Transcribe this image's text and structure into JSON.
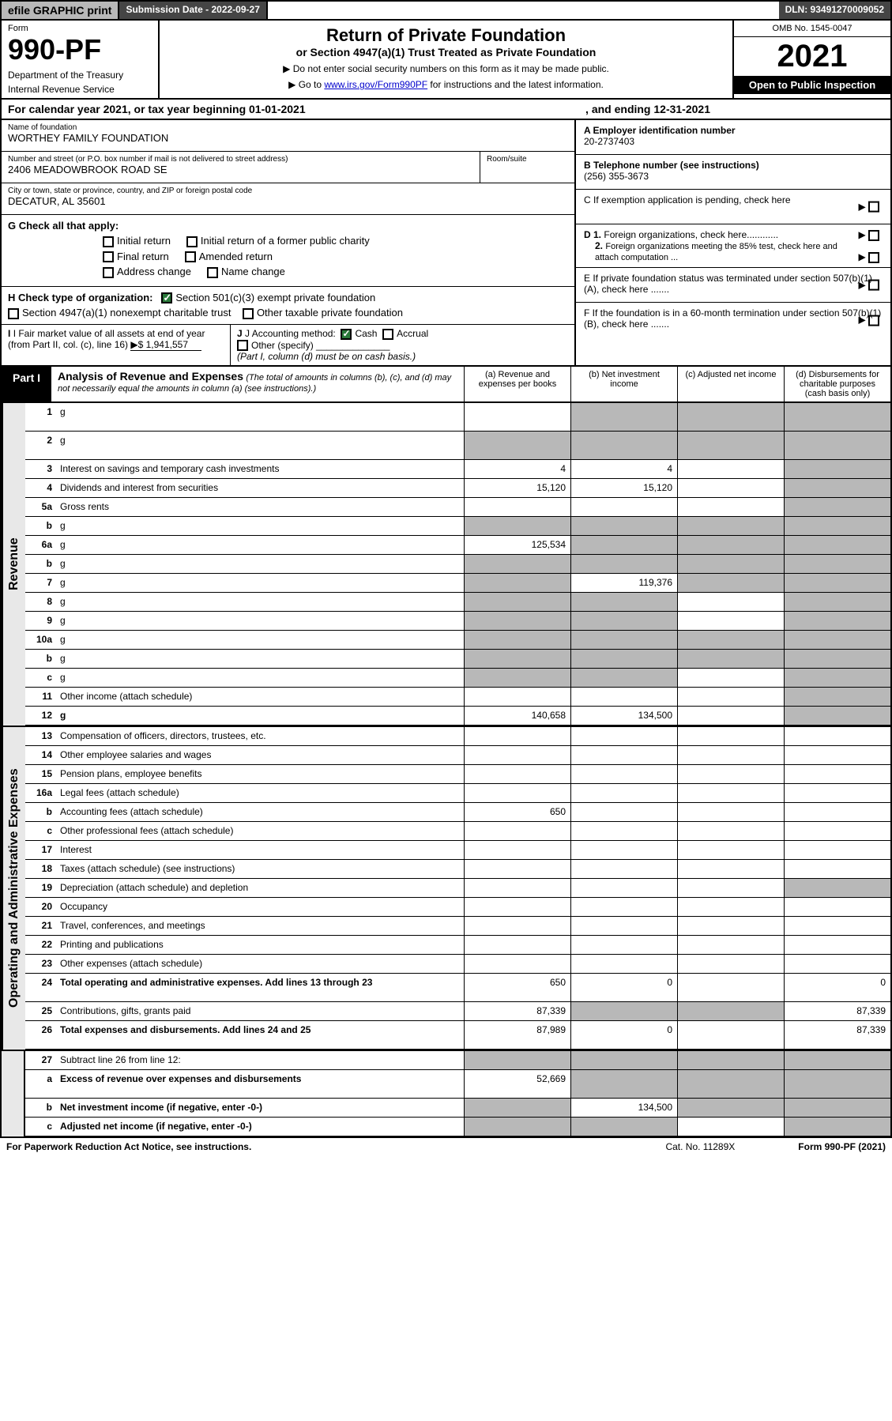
{
  "topbar": {
    "efile": "efile GRAPHIC print",
    "submission": "Submission Date - 2022-09-27",
    "dln": "DLN: 93491270009052"
  },
  "header": {
    "form_label": "Form",
    "form_number": "990-PF",
    "dept": "Department of the Treasury",
    "irs": "Internal Revenue Service",
    "title": "Return of Private Foundation",
    "subtitle": "or Section 4947(a)(1) Trust Treated as Private Foundation",
    "instr1": "▶ Do not enter social security numbers on this form as it may be made public.",
    "instr2_pre": "▶ Go to ",
    "instr2_link": "www.irs.gov/Form990PF",
    "instr2_post": " for instructions and the latest information.",
    "omb": "OMB No. 1545-0047",
    "year": "2021",
    "open": "Open to Public Inspection"
  },
  "calyear": {
    "text": "For calendar year 2021, or tax year beginning 01-01-2021",
    "ending": ", and ending 12-31-2021"
  },
  "foundation": {
    "name_lbl": "Name of foundation",
    "name": "WORTHEY FAMILY FOUNDATION",
    "addr_lbl": "Number and street (or P.O. box number if mail is not delivered to street address)",
    "addr": "2406 MEADOWBROOK ROAD SE",
    "room_lbl": "Room/suite",
    "city_lbl": "City or town, state or province, country, and ZIP or foreign postal code",
    "city": "DECATUR, AL  35601",
    "ein_lbl": "A Employer identification number",
    "ein": "20-2737403",
    "tel_lbl": "B Telephone number (see instructions)",
    "tel": "(256) 355-3673",
    "c_lbl": "C If exemption application is pending, check here",
    "d1_lbl": "D 1. Foreign organizations, check here............",
    "d2_lbl": "2. Foreign organizations meeting the 85% test, check here and attach computation ...",
    "e_lbl": "E  If private foundation status was terminated under section 507(b)(1)(A), check here .......",
    "f_lbl": "F  If the foundation is in a 60-month termination under section 507(b)(1)(B), check here .......",
    "g_lbl": "G Check all that apply:",
    "g_opts": [
      "Initial return",
      "Initial return of a former public charity",
      "Final return",
      "Amended return",
      "Address change",
      "Name change"
    ],
    "h_lbl": "H Check type of organization:",
    "h_opt1": "Section 501(c)(3) exempt private foundation",
    "h_opt2": "Section 4947(a)(1) nonexempt charitable trust",
    "h_opt3": "Other taxable private foundation",
    "i_lbl": "I Fair market value of all assets at end of year (from Part II, col. (c), line 16)",
    "i_val": "▶$  1,941,557",
    "j_lbl": "J Accounting method:",
    "j_cash": "Cash",
    "j_accrual": "Accrual",
    "j_other": "Other (specify)",
    "j_note": "(Part I, column (d) must be on cash basis.)"
  },
  "part1": {
    "tag": "Part I",
    "title": "Analysis of Revenue and Expenses",
    "title_note": "(The total of amounts in columns (b), (c), and (d) may not necessarily equal the amounts in column (a) (see instructions).)",
    "col_a": "(a)   Revenue and expenses per books",
    "col_b": "(b)   Net investment income",
    "col_c": "(c)   Adjusted net income",
    "col_d": "(d)   Disbursements for charitable purposes (cash basis only)"
  },
  "revenue_label": "Revenue",
  "expenses_label": "Operating and Administrative Expenses",
  "rows": [
    {
      "n": "1",
      "d": "g",
      "a": "",
      "b": "g",
      "c": "g",
      "tall": true
    },
    {
      "n": "2",
      "d": "g",
      "a": "g",
      "b": "g",
      "c": "g",
      "tall": true,
      "checked": true
    },
    {
      "n": "3",
      "d": "Interest on savings and temporary cash investments",
      "a": "4",
      "b": "4"
    },
    {
      "n": "4",
      "d": "Dividends and interest from securities",
      "a": "15,120",
      "b": "15,120"
    },
    {
      "n": "5a",
      "d": "Gross rents"
    },
    {
      "n": "b",
      "d": "g",
      "a": "g",
      "b": "g",
      "c": "g"
    },
    {
      "n": "6a",
      "d": "g",
      "a": "125,534",
      "b": "g",
      "c": "g"
    },
    {
      "n": "b",
      "d": "g",
      "a": "g",
      "b": "g",
      "c": "g"
    },
    {
      "n": "7",
      "d": "g",
      "a": "g",
      "b": "119,376",
      "c": "g"
    },
    {
      "n": "8",
      "d": "g",
      "a": "g",
      "b": "g"
    },
    {
      "n": "9",
      "d": "g",
      "a": "g",
      "b": "g"
    },
    {
      "n": "10a",
      "d": "g",
      "a": "g",
      "b": "g",
      "c": "g"
    },
    {
      "n": "b",
      "d": "g",
      "a": "g",
      "b": "g",
      "c": "g"
    },
    {
      "n": "c",
      "d": "g",
      "a": "g",
      "b": "g"
    },
    {
      "n": "11",
      "d": "Other income (attach schedule)"
    },
    {
      "n": "12",
      "d": "g",
      "a": "140,658",
      "b": "134,500",
      "bold": true
    }
  ],
  "exp_rows": [
    {
      "n": "13",
      "d": "Compensation of officers, directors, trustees, etc."
    },
    {
      "n": "14",
      "d": "Other employee salaries and wages"
    },
    {
      "n": "15",
      "d": "Pension plans, employee benefits"
    },
    {
      "n": "16a",
      "d": "Legal fees (attach schedule)"
    },
    {
      "n": "b",
      "d": "Accounting fees (attach schedule)",
      "a": "650"
    },
    {
      "n": "c",
      "d": "Other professional fees (attach schedule)"
    },
    {
      "n": "17",
      "d": "Interest"
    },
    {
      "n": "18",
      "d": "Taxes (attach schedule) (see instructions)"
    },
    {
      "n": "19",
      "d": "Depreciation (attach schedule) and depletion",
      "d_": "g"
    },
    {
      "n": "20",
      "d": "Occupancy"
    },
    {
      "n": "21",
      "d": "Travel, conferences, and meetings"
    },
    {
      "n": "22",
      "d": "Printing and publications"
    },
    {
      "n": "23",
      "d": "Other expenses (attach schedule)"
    },
    {
      "n": "24",
      "d": "Total operating and administrative expenses. Add lines 13 through 23",
      "a": "650",
      "b": "0",
      "dcol": "0",
      "bold": true,
      "tall": true
    },
    {
      "n": "25",
      "d": "Contributions, gifts, grants paid",
      "a": "87,339",
      "b": "g",
      "c": "g",
      "dcol": "87,339"
    },
    {
      "n": "26",
      "d": "Total expenses and disbursements. Add lines 24 and 25",
      "a": "87,989",
      "b": "0",
      "dcol": "87,339",
      "bold": true,
      "tall": true
    }
  ],
  "bottom_rows": [
    {
      "n": "27",
      "d": "Subtract line 26 from line 12:",
      "a": "g",
      "b": "g",
      "c": "g",
      "dcol": "g"
    },
    {
      "n": "a",
      "d": "Excess of revenue over expenses and disbursements",
      "a": "52,669",
      "b": "g",
      "c": "g",
      "dcol": "g",
      "bold": true,
      "tall": true
    },
    {
      "n": "b",
      "d": "Net investment income (if negative, enter -0-)",
      "a": "g",
      "b": "134,500",
      "c": "g",
      "dcol": "g",
      "bold": true
    },
    {
      "n": "c",
      "d": "Adjusted net income (if negative, enter -0-)",
      "a": "g",
      "b": "g",
      "dcol": "g",
      "bold": true
    }
  ],
  "footer": {
    "pra": "For Paperwork Reduction Act Notice, see instructions.",
    "cat": "Cat. No. 11289X",
    "form": "Form 990-PF (2021)"
  }
}
